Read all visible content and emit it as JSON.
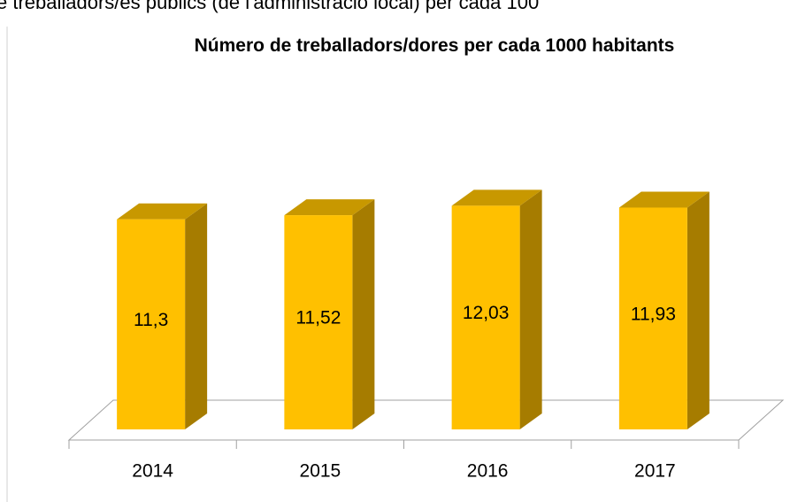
{
  "header_text": "e treballadors/es públics (de l'administració local) per cada 100",
  "chart_data": {
    "type": "bar3d",
    "title": "Número de treballadors/dores per cada 1000 habitants",
    "categories": [
      "2014",
      "2015",
      "2016",
      "2017"
    ],
    "values": [
      11.3,
      11.52,
      12.03,
      11.93
    ],
    "value_labels": [
      "11,3",
      "11,52",
      "12,03",
      "11,93"
    ],
    "color": "#ffc000"
  }
}
